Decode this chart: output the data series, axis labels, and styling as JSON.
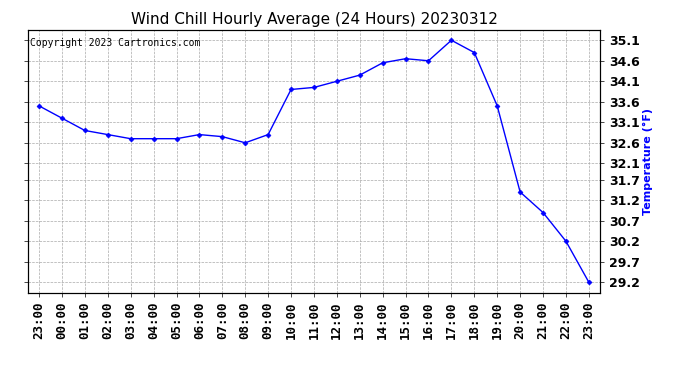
{
  "title": "Wind Chill Hourly Average (24 Hours) 20230312",
  "copyright": "Copyright 2023 Cartronics.com",
  "ylabel": "Temperature (°F)",
  "ylabel_color": "blue",
  "x_labels": [
    "23:00",
    "00:00",
    "01:00",
    "02:00",
    "03:00",
    "04:00",
    "05:00",
    "06:00",
    "07:00",
    "08:00",
    "09:00",
    "10:00",
    "11:00",
    "12:00",
    "13:00",
    "14:00",
    "15:00",
    "16:00",
    "17:00",
    "18:00",
    "19:00",
    "20:00",
    "21:00",
    "22:00",
    "23:00"
  ],
  "y_values": [
    33.5,
    33.2,
    32.9,
    32.8,
    32.7,
    32.7,
    32.7,
    32.8,
    32.75,
    32.6,
    32.8,
    33.9,
    33.95,
    34.1,
    34.25,
    34.55,
    34.65,
    34.6,
    35.1,
    34.8,
    33.5,
    31.4,
    30.9,
    30.2,
    29.2
  ],
  "line_color": "blue",
  "marker": "D",
  "marker_size": 2.5,
  "ylim_min": 28.95,
  "ylim_max": 35.35,
  "yticks": [
    29.2,
    29.7,
    30.2,
    30.7,
    31.2,
    31.7,
    32.1,
    32.6,
    33.1,
    33.6,
    34.1,
    34.6,
    35.1
  ],
  "background_color": "#ffffff",
  "plot_bg_color": "#ffffff",
  "grid_color": "#aaaaaa",
  "title_fontsize": 11,
  "label_fontsize": 8,
  "tick_fontsize": 9,
  "copyright_fontsize": 7
}
